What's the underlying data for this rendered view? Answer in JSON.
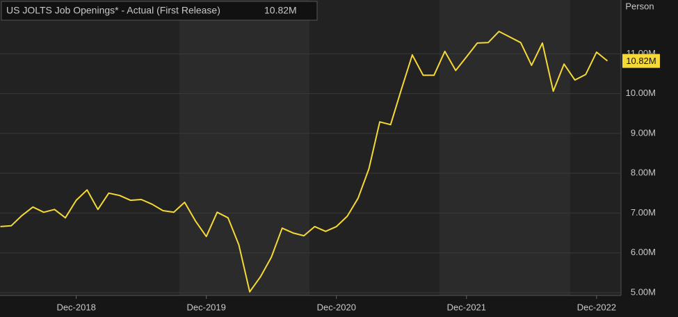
{
  "chart_data": {
    "type": "line",
    "y_axis_label": "Person",
    "categories": [
      null,
      null,
      null,
      null,
      null,
      null,
      null,
      "Dec-2018",
      null,
      null,
      null,
      null,
      null,
      null,
      null,
      null,
      null,
      null,
      null,
      "Dec-2019",
      null,
      null,
      null,
      null,
      null,
      null,
      null,
      null,
      null,
      null,
      null,
      "Dec-2020",
      null,
      null,
      null,
      null,
      null,
      null,
      null,
      null,
      null,
      null,
      null,
      "Dec-2021",
      null,
      null,
      null,
      null,
      null,
      null,
      null,
      null,
      null,
      null,
      null,
      "Dec-2022",
      null
    ],
    "series": [
      {
        "name": "US JOLTS Job Openings* - Actual (First Release)",
        "color": "#f5d936",
        "values": [
          6.66,
          6.68,
          6.94,
          7.15,
          7.02,
          7.09,
          6.88,
          7.32,
          7.58,
          7.09,
          7.5,
          7.44,
          7.32,
          7.34,
          7.22,
          7.06,
          7.02,
          7.27,
          6.8,
          6.41,
          7.02,
          6.88,
          6.2,
          5.02,
          5.4,
          5.89,
          6.62,
          6.5,
          6.43,
          6.66,
          6.54,
          6.66,
          6.92,
          7.37,
          8.11,
          9.29,
          9.22,
          10.11,
          10.97,
          10.46,
          10.46,
          11.06,
          10.58,
          10.92,
          11.27,
          11.28,
          11.56,
          11.42,
          11.28,
          10.71,
          11.27,
          10.06,
          10.74,
          10.34,
          10.48,
          11.04,
          10.82
        ],
        "value_labels": [
          null,
          null,
          null,
          null,
          null,
          null,
          null,
          null,
          null,
          null,
          null,
          null,
          null,
          null,
          null,
          null,
          null,
          null,
          null,
          null,
          null,
          null,
          null,
          null,
          null,
          null,
          null,
          null,
          null,
          null,
          null,
          null,
          null,
          null,
          null,
          null,
          null,
          null,
          null,
          null,
          null,
          null,
          null,
          null,
          null,
          null,
          null,
          null,
          null,
          null,
          null,
          null,
          null,
          null,
          null,
          null,
          "10.82M"
        ]
      }
    ],
    "ylim": [
      4.93,
      12.35
    ],
    "yticks": [
      {
        "value": 5,
        "label": "5.00M"
      },
      {
        "value": 6,
        "label": "6.00M"
      },
      {
        "value": 7,
        "label": "7.00M"
      },
      {
        "value": 8,
        "label": "8.00M"
      },
      {
        "value": 9,
        "label": "9.00M"
      },
      {
        "value": 10,
        "label": "10.00M"
      },
      {
        "value": 11,
        "label": "11.00M"
      }
    ],
    "grid": true
  }
}
